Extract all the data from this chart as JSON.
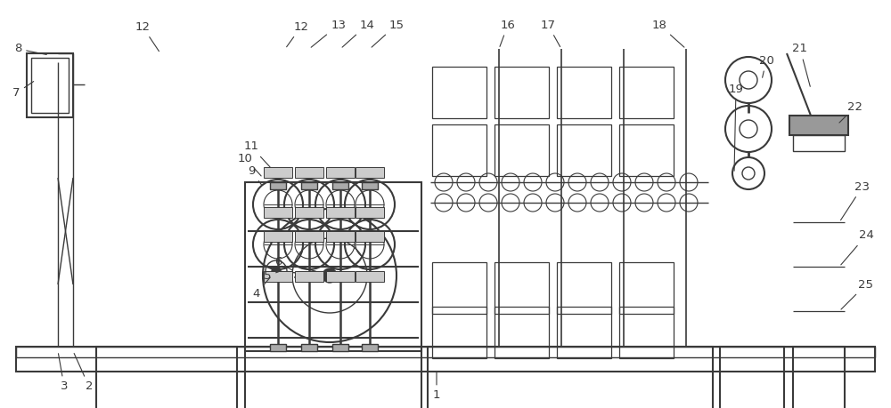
{
  "fig_width": 10.0,
  "fig_height": 4.59,
  "dpi": 100,
  "bg_color": "#ffffff",
  "lc": "#3a3a3a",
  "lw": 1.0,
  "lw2": 1.5,
  "font_size": 9.5
}
